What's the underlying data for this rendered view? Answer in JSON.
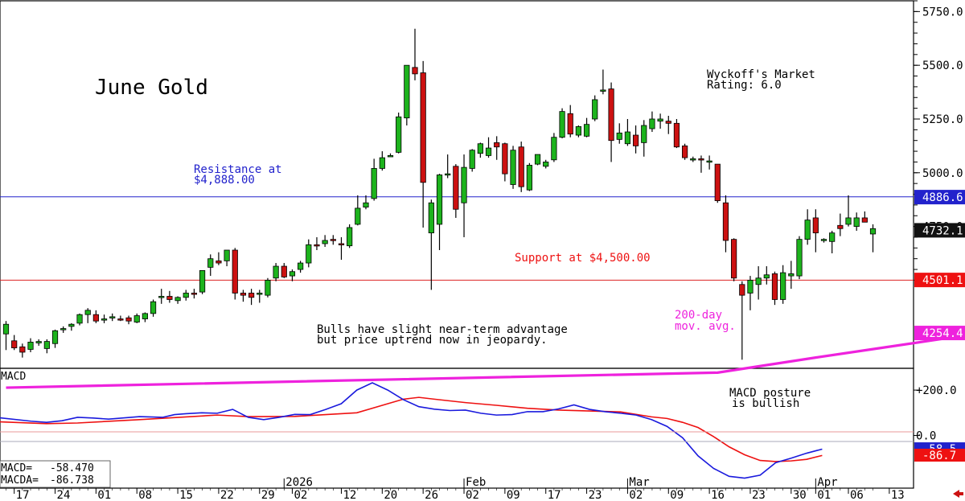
{
  "title": "June Gold",
  "rating": {
    "line1": "Wyckoff's Market",
    "line2": "Rating: 6.0"
  },
  "annotations": {
    "resistance_line1": "Resistance at",
    "resistance_line2": "$4,888.00",
    "support": "Support at $4,500.00",
    "ma_line1": "200-day",
    "ma_line2": "mov. avg.",
    "note_line1": "Bulls have slight near-term advantage",
    "note_line2": "but price uptrend now in jeopardy.",
    "macd_note_line1": "MACD posture",
    "macd_note_line2": "is bullish"
  },
  "colors": {
    "up": "#1db31d",
    "down": "#cc1111",
    "resistance": "#2222cc",
    "support": "#dd2222",
    "ma": "#ee22dd",
    "macd": "#1a1add",
    "macda": "#ee1111",
    "resistance_text": "#2222cc",
    "support_text": "#ee1111"
  },
  "macd_panel": {
    "label": "MACD",
    "macd_value_label": "MACD=",
    "macd_value": "-58.470",
    "macda_value_label": "MACDA=",
    "macda_value": "-86.738"
  },
  "price_axis": {
    "ticks": [
      "5750.0",
      "5500.0",
      "5250.0",
      "5000.0",
      "4750.0"
    ],
    "markers": [
      {
        "label": "4886.6",
        "style": "blue-box"
      },
      {
        "label": "4732.1",
        "style": "black-box"
      },
      {
        "label": "4501.1",
        "style": "red-box"
      },
      {
        "label": "4254.4",
        "style": "magenta-box"
      }
    ]
  },
  "macd_axis": {
    "ticks": [
      "+200.0",
      "0.0"
    ],
    "markers": [
      {
        "label": "-58.5",
        "style": "blue-box"
      },
      {
        "label": "-86.7",
        "style": "red-box"
      }
    ]
  },
  "x_axis": {
    "day_labels": [
      "17",
      "24",
      "01",
      "08",
      "15",
      "22",
      "29",
      "02",
      "12",
      "20",
      "26",
      "02",
      "09",
      "17",
      "23",
      "02",
      "09",
      "16",
      "23",
      "30",
      "01",
      "06",
      "13"
    ],
    "month_labels": [
      "2026",
      "Feb",
      "Mar",
      "Apr"
    ]
  },
  "chart_data": {
    "type": "candlestick",
    "title": "June Gold",
    "ylim": [
      4090,
      5800
    ],
    "resistance": 4888.0,
    "support": 4500.0,
    "last_price": 4732.1,
    "ma200_last": 4254.4,
    "candles": [
      {
        "o": 4250,
        "h": 4310,
        "l": 4175,
        "c": 4295
      },
      {
        "o": 4218,
        "h": 4245,
        "l": 4175,
        "c": 4185
      },
      {
        "o": 4190,
        "h": 4205,
        "l": 4140,
        "c": 4165
      },
      {
        "o": 4178,
        "h": 4230,
        "l": 4165,
        "c": 4212
      },
      {
        "o": 4208,
        "h": 4225,
        "l": 4195,
        "c": 4215
      },
      {
        "o": 4182,
        "h": 4225,
        "l": 4160,
        "c": 4215
      },
      {
        "o": 4205,
        "h": 4270,
        "l": 4185,
        "c": 4265
      },
      {
        "o": 4270,
        "h": 4285,
        "l": 4255,
        "c": 4275
      },
      {
        "o": 4285,
        "h": 4300,
        "l": 4265,
        "c": 4295
      },
      {
        "o": 4300,
        "h": 4345,
        "l": 4290,
        "c": 4340
      },
      {
        "o": 4340,
        "h": 4370,
        "l": 4300,
        "c": 4360
      },
      {
        "o": 4340,
        "h": 4360,
        "l": 4300,
        "c": 4310
      },
      {
        "o": 4320,
        "h": 4340,
        "l": 4300,
        "c": 4320
      },
      {
        "o": 4325,
        "h": 4345,
        "l": 4310,
        "c": 4330
      },
      {
        "o": 4320,
        "h": 4335,
        "l": 4310,
        "c": 4315
      },
      {
        "o": 4325,
        "h": 4335,
        "l": 4295,
        "c": 4310
      },
      {
        "o": 4305,
        "h": 4345,
        "l": 4300,
        "c": 4335
      },
      {
        "o": 4320,
        "h": 4350,
        "l": 4305,
        "c": 4345
      },
      {
        "o": 4345,
        "h": 4410,
        "l": 4330,
        "c": 4400
      },
      {
        "o": 4420,
        "h": 4460,
        "l": 4390,
        "c": 4425
      },
      {
        "o": 4425,
        "h": 4450,
        "l": 4395,
        "c": 4410
      },
      {
        "o": 4405,
        "h": 4425,
        "l": 4390,
        "c": 4420
      },
      {
        "o": 4420,
        "h": 4455,
        "l": 4405,
        "c": 4440
      },
      {
        "o": 4440,
        "h": 4460,
        "l": 4415,
        "c": 4435
      },
      {
        "o": 4445,
        "h": 4545,
        "l": 4435,
        "c": 4545
      },
      {
        "o": 4560,
        "h": 4620,
        "l": 4520,
        "c": 4600
      },
      {
        "o": 4590,
        "h": 4630,
        "l": 4570,
        "c": 4580
      },
      {
        "o": 4590,
        "h": 4640,
        "l": 4565,
        "c": 4640
      },
      {
        "o": 4640,
        "h": 4650,
        "l": 4410,
        "c": 4440
      },
      {
        "o": 4440,
        "h": 4455,
        "l": 4400,
        "c": 4430
      },
      {
        "o": 4440,
        "h": 4460,
        "l": 4385,
        "c": 4420
      },
      {
        "o": 4440,
        "h": 4455,
        "l": 4395,
        "c": 4440
      },
      {
        "o": 4430,
        "h": 4510,
        "l": 4420,
        "c": 4500
      },
      {
        "o": 4510,
        "h": 4580,
        "l": 4495,
        "c": 4565
      },
      {
        "o": 4565,
        "h": 4580,
        "l": 4510,
        "c": 4515
      },
      {
        "o": 4520,
        "h": 4550,
        "l": 4495,
        "c": 4540
      },
      {
        "o": 4550,
        "h": 4590,
        "l": 4535,
        "c": 4580
      },
      {
        "o": 4580,
        "h": 4690,
        "l": 4560,
        "c": 4665
      },
      {
        "o": 4665,
        "h": 4700,
        "l": 4640,
        "c": 4660
      },
      {
        "o": 4670,
        "h": 4710,
        "l": 4655,
        "c": 4685
      },
      {
        "o": 4690,
        "h": 4710,
        "l": 4665,
        "c": 4685
      },
      {
        "o": 4670,
        "h": 4700,
        "l": 4595,
        "c": 4665
      },
      {
        "o": 4660,
        "h": 4760,
        "l": 4650,
        "c": 4745
      },
      {
        "o": 4760,
        "h": 4895,
        "l": 4755,
        "c": 4835
      },
      {
        "o": 4840,
        "h": 4895,
        "l": 4830,
        "c": 4860
      },
      {
        "o": 4880,
        "h": 5065,
        "l": 4870,
        "c": 5020
      },
      {
        "o": 5020,
        "h": 5100,
        "l": 5010,
        "c": 5070
      },
      {
        "o": 5080,
        "h": 5090,
        "l": 5075,
        "c": 5080
      },
      {
        "o": 5095,
        "h": 5280,
        "l": 5090,
        "c": 5260
      },
      {
        "o": 5255,
        "h": 5500,
        "l": 5220,
        "c": 5500
      },
      {
        "o": 5490,
        "h": 5670,
        "l": 5430,
        "c": 5460
      },
      {
        "o": 5465,
        "h": 5520,
        "l": 4745,
        "c": 4955
      },
      {
        "o": 4720,
        "h": 4875,
        "l": 4455,
        "c": 4860
      },
      {
        "o": 4760,
        "h": 4995,
        "l": 4640,
        "c": 4990
      },
      {
        "o": 4995,
        "h": 5085,
        "l": 4975,
        "c": 4995
      },
      {
        "o": 5030,
        "h": 5040,
        "l": 4790,
        "c": 4830
      },
      {
        "o": 4860,
        "h": 5085,
        "l": 4700,
        "c": 5025
      },
      {
        "o": 5020,
        "h": 5110,
        "l": 5005,
        "c": 5105
      },
      {
        "o": 5090,
        "h": 5140,
        "l": 5070,
        "c": 5135
      },
      {
        "o": 5080,
        "h": 5165,
        "l": 5070,
        "c": 5115
      },
      {
        "o": 5140,
        "h": 5170,
        "l": 5060,
        "c": 5120
      },
      {
        "o": 5135,
        "h": 5140,
        "l": 4960,
        "c": 4995
      },
      {
        "o": 4945,
        "h": 5125,
        "l": 4925,
        "c": 5105
      },
      {
        "o": 5120,
        "h": 5145,
        "l": 4910,
        "c": 4935
      },
      {
        "o": 4920,
        "h": 5045,
        "l": 4915,
        "c": 5035
      },
      {
        "o": 5040,
        "h": 5085,
        "l": 5035,
        "c": 5085
      },
      {
        "o": 5030,
        "h": 5060,
        "l": 5020,
        "c": 5050
      },
      {
        "o": 5060,
        "h": 5185,
        "l": 5050,
        "c": 5165
      },
      {
        "o": 5165,
        "h": 5300,
        "l": 5160,
        "c": 5285
      },
      {
        "o": 5275,
        "h": 5315,
        "l": 5165,
        "c": 5180
      },
      {
        "o": 5175,
        "h": 5220,
        "l": 5165,
        "c": 5215
      },
      {
        "o": 5170,
        "h": 5255,
        "l": 5165,
        "c": 5225
      },
      {
        "o": 5250,
        "h": 5360,
        "l": 5240,
        "c": 5340
      },
      {
        "o": 5385,
        "h": 5480,
        "l": 5365,
        "c": 5385
      },
      {
        "o": 5390,
        "h": 5420,
        "l": 5050,
        "c": 5150
      },
      {
        "o": 5155,
        "h": 5230,
        "l": 5135,
        "c": 5185
      },
      {
        "o": 5135,
        "h": 5250,
        "l": 5125,
        "c": 5190
      },
      {
        "o": 5175,
        "h": 5220,
        "l": 5090,
        "c": 5125
      },
      {
        "o": 5140,
        "h": 5245,
        "l": 5075,
        "c": 5220
      },
      {
        "o": 5205,
        "h": 5285,
        "l": 5190,
        "c": 5250
      },
      {
        "o": 5240,
        "h": 5275,
        "l": 5205,
        "c": 5250
      },
      {
        "o": 5240,
        "h": 5265,
        "l": 5180,
        "c": 5230
      },
      {
        "o": 5230,
        "h": 5250,
        "l": 5115,
        "c": 5120
      },
      {
        "o": 5125,
        "h": 5135,
        "l": 5060,
        "c": 5070
      },
      {
        "o": 5065,
        "h": 5075,
        "l": 5050,
        "c": 5065
      },
      {
        "o": 5065,
        "h": 5080,
        "l": 5000,
        "c": 5060
      },
      {
        "o": 5055,
        "h": 5080,
        "l": 5015,
        "c": 5055
      },
      {
        "o": 5040,
        "h": 5040,
        "l": 4860,
        "c": 4870
      },
      {
        "o": 4860,
        "h": 4895,
        "l": 4630,
        "c": 4685
      },
      {
        "o": 4690,
        "h": 4695,
        "l": 4495,
        "c": 4510
      },
      {
        "o": 4480,
        "h": 4495,
        "l": 4130,
        "c": 4430
      },
      {
        "o": 4440,
        "h": 4520,
        "l": 4360,
        "c": 4500
      },
      {
        "o": 4480,
        "h": 4565,
        "l": 4410,
        "c": 4510
      },
      {
        "o": 4510,
        "h": 4565,
        "l": 4480,
        "c": 4525
      },
      {
        "o": 4530,
        "h": 4540,
        "l": 4385,
        "c": 4410
      },
      {
        "o": 4410,
        "h": 4570,
        "l": 4390,
        "c": 4535
      },
      {
        "o": 4520,
        "h": 4590,
        "l": 4460,
        "c": 4530
      },
      {
        "o": 4520,
        "h": 4705,
        "l": 4505,
        "c": 4690
      },
      {
        "o": 4690,
        "h": 4830,
        "l": 4665,
        "c": 4780
      },
      {
        "o": 4790,
        "h": 4830,
        "l": 4630,
        "c": 4720
      },
      {
        "o": 4685,
        "h": 4695,
        "l": 4675,
        "c": 4690
      },
      {
        "o": 4680,
        "h": 4730,
        "l": 4625,
        "c": 4720
      },
      {
        "o": 4755,
        "h": 4810,
        "l": 4705,
        "c": 4740
      },
      {
        "o": 4760,
        "h": 4895,
        "l": 4750,
        "c": 4790
      },
      {
        "o": 4750,
        "h": 4815,
        "l": 4730,
        "c": 4790
      },
      {
        "o": 4790,
        "h": 4820,
        "l": 4770,
        "c": 4770
      },
      {
        "o": 4715,
        "h": 4760,
        "l": 4630,
        "c": 4740
      }
    ],
    "ma200": [
      [
        0,
        4000
      ],
      [
        87,
        4070
      ],
      [
        99,
        4140
      ],
      [
        107,
        4185
      ],
      [
        115,
        4230
      ],
      [
        123,
        4254
      ]
    ],
    "macd": {
      "ylim": [
        -232,
        296
      ],
      "macd": [
        [
          0,
          78
        ],
        [
          8,
          63
        ],
        [
          12,
          58
        ],
        [
          16,
          65
        ],
        [
          20,
          80
        ],
        [
          24,
          77
        ],
        [
          28,
          72
        ],
        [
          36,
          83
        ],
        [
          42,
          80
        ],
        [
          45,
          92
        ],
        [
          48,
          96
        ],
        [
          52,
          100
        ],
        [
          56,
          98
        ],
        [
          60,
          115
        ],
        [
          64,
          80
        ],
        [
          68,
          70
        ],
        [
          72,
          80
        ],
        [
          76,
          93
        ],
        [
          80,
          92
        ],
        [
          84,
          115
        ],
        [
          88,
          140
        ],
        [
          92,
          200
        ],
        [
          96,
          232
        ],
        [
          100,
          200
        ],
        [
          104,
          158
        ],
        [
          108,
          127
        ],
        [
          112,
          116
        ],
        [
          116,
          110
        ],
        [
          120,
          112
        ],
        [
          124,
          98
        ],
        [
          128,
          90
        ],
        [
          132,
          92
        ],
        [
          136,
          105
        ],
        [
          140,
          105
        ],
        [
          144,
          117
        ],
        [
          148,
          135
        ],
        [
          152,
          115
        ],
        [
          156,
          105
        ],
        [
          160,
          98
        ],
        [
          164,
          90
        ],
        [
          168,
          70
        ],
        [
          172,
          40
        ],
        [
          176,
          -10
        ],
        [
          180,
          -90
        ],
        [
          184,
          -145
        ],
        [
          188,
          -180
        ],
        [
          192,
          -188
        ],
        [
          196,
          -175
        ],
        [
          200,
          -120
        ],
        [
          204,
          -100
        ],
        [
          208,
          -78
        ],
        [
          212,
          -60
        ]
      ],
      "macda": [
        [
          0,
          60
        ],
        [
          12,
          52
        ],
        [
          20,
          55
        ],
        [
          36,
          70
        ],
        [
          48,
          82
        ],
        [
          56,
          90
        ],
        [
          64,
          83
        ],
        [
          76,
          84
        ],
        [
          92,
          100
        ],
        [
          100,
          140
        ],
        [
          104,
          160
        ],
        [
          108,
          168
        ],
        [
          112,
          160
        ],
        [
          120,
          145
        ],
        [
          128,
          133
        ],
        [
          136,
          120
        ],
        [
          144,
          112
        ],
        [
          152,
          108
        ],
        [
          160,
          104
        ],
        [
          164,
          93
        ],
        [
          168,
          82
        ],
        [
          172,
          75
        ],
        [
          176,
          58
        ],
        [
          180,
          35
        ],
        [
          184,
          -5
        ],
        [
          188,
          -50
        ],
        [
          192,
          -85
        ],
        [
          196,
          -110
        ],
        [
          200,
          -115
        ],
        [
          204,
          -112
        ],
        [
          208,
          -105
        ],
        [
          212,
          -88
        ]
      ]
    }
  }
}
